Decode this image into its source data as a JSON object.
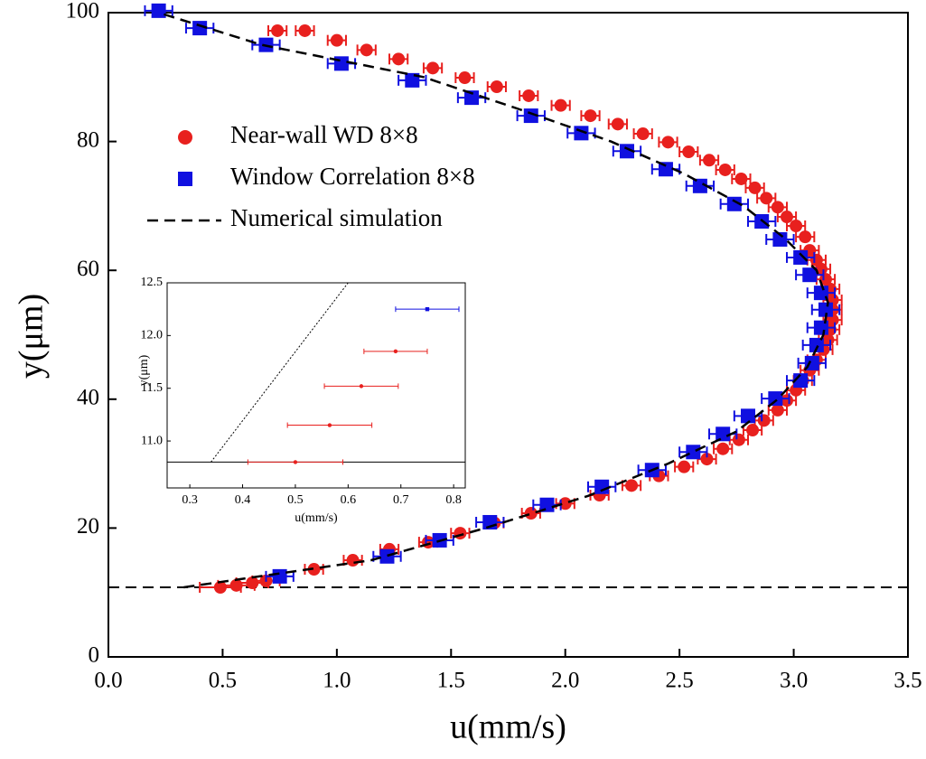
{
  "chart_data": [
    {
      "type": "scatter",
      "xlabel": "u(mm/s)",
      "ylabel": "y(μm)",
      "xlim": [
        0,
        3.5
      ],
      "ylim": [
        0,
        100
      ],
      "xticks": [
        {
          "value": 0,
          "label": "0.0"
        },
        0.5,
        {
          "value": 1,
          "label": "1.0"
        },
        1.5,
        {
          "value": 2,
          "label": "2.0"
        },
        2.5,
        {
          "value": 3,
          "label": "3.0"
        },
        3.5
      ],
      "yticks": [
        0,
        20,
        40,
        60,
        80,
        100
      ],
      "hline": 10.8,
      "series": [
        {
          "name": "Near-wall WD 8×8",
          "color": "#e8201e",
          "marker": "circle",
          "x": [
            0.49,
            0.56,
            0.63,
            0.69,
            0.9,
            1.07,
            1.23,
            1.4,
            1.54,
            1.69,
            1.85,
            2.0,
            2.15,
            2.29,
            2.41,
            2.52,
            2.62,
            2.69,
            2.76,
            2.82,
            2.87,
            2.93,
            2.97,
            3.01,
            3.04,
            3.07,
            3.1,
            3.13,
            3.15,
            3.16,
            3.17,
            3.17,
            3.17,
            3.16,
            3.14,
            3.12,
            3.1,
            3.07,
            3.05,
            3.01,
            2.97,
            2.93,
            2.88,
            2.83,
            2.77,
            2.7,
            2.63,
            2.54,
            2.45,
            2.34,
            2.23,
            2.11,
            1.98,
            1.84,
            1.7,
            1.56,
            1.42,
            1.27,
            1.13,
            1.0,
            0.86,
            0.74
          ],
          "y": [
            10.8,
            11.1,
            11.5,
            11.8,
            13.6,
            15.0,
            16.7,
            17.8,
            19.2,
            20.8,
            22.3,
            23.8,
            25.1,
            26.6,
            28.1,
            29.5,
            30.7,
            32.3,
            33.7,
            35.2,
            36.7,
            38.3,
            39.8,
            41.4,
            42.9,
            44.5,
            46.1,
            47.7,
            49.2,
            50.8,
            52.3,
            53.9,
            55.4,
            57.1,
            58.6,
            60.2,
            61.6,
            63.1,
            65.2,
            66.9,
            68.3,
            69.8,
            71.2,
            72.8,
            74.2,
            75.6,
            77.1,
            78.4,
            79.9,
            81.2,
            82.7,
            84.0,
            85.6,
            87.1,
            88.5,
            89.9,
            91.4,
            92.8,
            94.2,
            95.7,
            97.2,
            97.2
          ],
          "errors": [
            0.09,
            0.08,
            0.07,
            0.06,
            0.04,
            0.04,
            0.04,
            0.04,
            0.04,
            0.04,
            0.04,
            0.04,
            0.04,
            0.04,
            0.04,
            0.04,
            0.04,
            0.04,
            0.04,
            0.04,
            0.04,
            0.04,
            0.04,
            0.04,
            0.04,
            0.04,
            0.04,
            0.04,
            0.04,
            0.04,
            0.04,
            0.04,
            0.04,
            0.04,
            0.04,
            0.04,
            0.04,
            0.04,
            0.04,
            0.04,
            0.04,
            0.04,
            0.04,
            0.04,
            0.04,
            0.04,
            0.04,
            0.04,
            0.04,
            0.04,
            0.04,
            0.04,
            0.04,
            0.04,
            0.04,
            0.04,
            0.04,
            0.04,
            0.04,
            0.04,
            0.04,
            0.04
          ]
        },
        {
          "name": "Window Correlation 8×8",
          "color": "#1010e0",
          "marker": "square",
          "x": [
            0.22,
            0.4,
            0.69,
            1.02,
            1.33,
            1.59,
            1.85,
            2.07,
            2.27,
            2.44,
            2.59,
            2.74,
            2.86,
            2.94,
            3.03,
            3.07,
            3.12,
            3.14,
            3.12,
            3.1,
            3.08,
            3.03,
            2.92,
            2.8,
            2.69,
            2.56,
            2.38,
            2.16,
            1.92,
            1.67,
            1.45,
            1.22,
            0.75
          ],
          "y": [
            100.3,
            97.6,
            95.0,
            92.1,
            89.5,
            86.8,
            84.0,
            81.3,
            78.5,
            75.7,
            73.1,
            70.3,
            67.6,
            64.8,
            62.0,
            59.3,
            56.5,
            53.9,
            51.1,
            48.4,
            45.6,
            42.9,
            40.1,
            37.4,
            34.6,
            31.8,
            29.0,
            26.4,
            23.6,
            20.9,
            18.1,
            15.6,
            12.5
          ],
          "errors": [
            0.06,
            0.06,
            0.06,
            0.06,
            0.06,
            0.06,
            0.06,
            0.06,
            0.06,
            0.06,
            0.06,
            0.06,
            0.06,
            0.06,
            0.06,
            0.06,
            0.06,
            0.06,
            0.06,
            0.06,
            0.06,
            0.06,
            0.06,
            0.06,
            0.06,
            0.06,
            0.06,
            0.06,
            0.06,
            0.06,
            0.06,
            0.06,
            0.06
          ]
        },
        {
          "name": "Numerical simulation",
          "color": "#000000",
          "marker": "dashed-line",
          "x": [
            0.33,
            1.15,
            1.65,
            2.1,
            2.45,
            2.75,
            2.93,
            3.06,
            3.13,
            3.15,
            3.1,
            2.96,
            2.78,
            2.52,
            2.2,
            1.8,
            1.38,
            0.67,
            0.22
          ],
          "y": [
            10.8,
            15,
            20,
            25,
            30,
            35,
            40,
            45,
            50,
            55,
            60,
            65,
            70,
            75,
            80,
            85,
            90,
            95,
            100
          ]
        }
      ]
    },
    {
      "type": "scatter",
      "xlabel": "u(mm/s)",
      "ylabel": "y(μm)",
      "xlim": [
        0.257,
        0.822
      ],
      "ylim": [
        10.555,
        12.5
      ],
      "xticks": [
        0.3,
        0.4,
        0.5,
        0.6,
        0.7,
        0.8
      ],
      "yticks": [
        {
          "value": 11,
          "label": "11.0"
        },
        11.5,
        {
          "value": 12,
          "label": "12.0"
        },
        12.5
      ],
      "hline": 10.8,
      "series": [
        {
          "color": "#e8201e",
          "marker": "dot",
          "x": [
            0.5,
            0.565,
            0.625,
            0.69
          ],
          "y": [
            10.8,
            11.15,
            11.52,
            11.85
          ],
          "errors": [
            0.09,
            0.08,
            0.07,
            0.06
          ]
        },
        {
          "color": "#1010e0",
          "marker": "dot-square",
          "x": [
            0.75
          ],
          "y": [
            12.25
          ],
          "errors": [
            0.06
          ]
        },
        {
          "color": "#000000",
          "marker": "dotted-line",
          "x": [
            0.34,
            0.6
          ],
          "y": [
            10.8,
            12.5
          ]
        }
      ]
    }
  ]
}
